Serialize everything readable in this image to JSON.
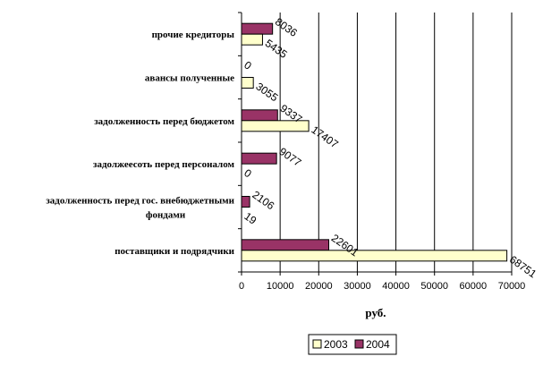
{
  "chart_data": {
    "type": "bar",
    "orientation": "horizontal",
    "categories": [
      "прочие кредиторы",
      "авансы полученные",
      "задолженность перед бюджетом",
      "задолжеесоть перед персоналом",
      [
        "задолженность перед гос. внебюджетными",
        "фондами"
      ],
      "поставщики и подрядчики"
    ],
    "series": [
      {
        "name": "2003",
        "values": [
          5435,
          3055,
          17407,
          0,
          19,
          68751
        ],
        "labels": [
          "5435",
          "3055",
          "17407",
          "0",
          "19",
          "68751"
        ],
        "color": "#ffffcc"
      },
      {
        "name": "2004",
        "values": [
          8036,
          0,
          9337,
          9077,
          2106,
          22601
        ],
        "labels": [
          "8036",
          "0",
          "9337",
          "9077",
          "2106",
          "22601"
        ],
        "color": "#993366"
      }
    ],
    "xlabel": "руб.",
    "xlim": [
      0,
      70000
    ],
    "xticks": [
      0,
      10000,
      20000,
      30000,
      40000,
      50000,
      60000,
      70000
    ],
    "grid": true,
    "legend": "bottom"
  }
}
